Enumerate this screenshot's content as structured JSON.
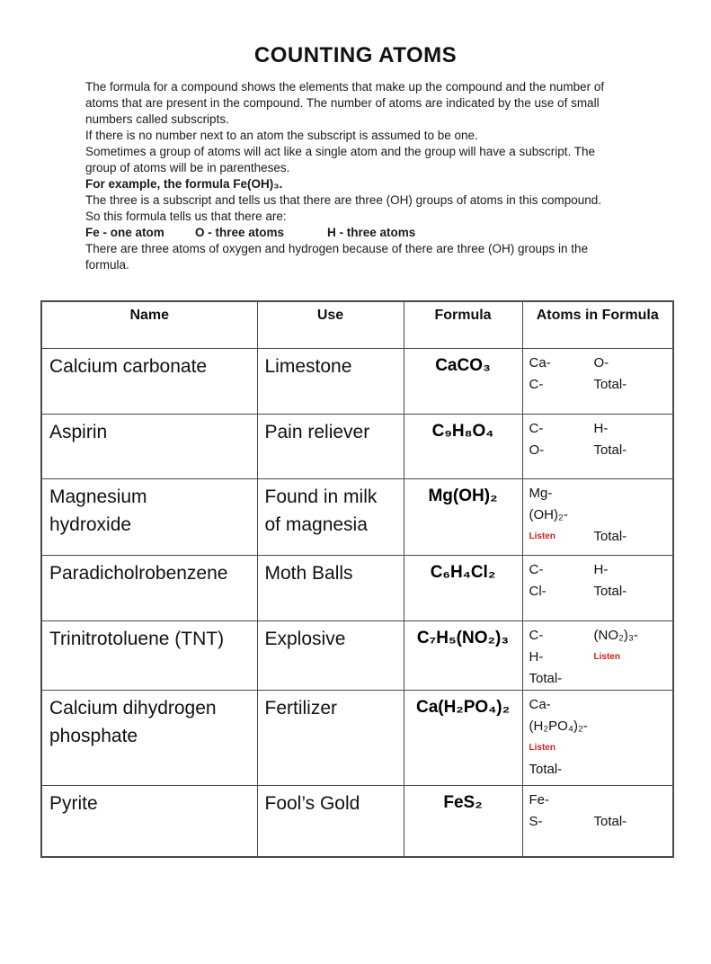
{
  "page": {
    "title": "COUNTING ATOMS"
  },
  "intro": {
    "p1": "The formula for a compound shows the elements that make up the compound and the number of atoms that are present in the compound. The number of atoms are indicated by the use of small numbers called subscripts.",
    "p2": "If there is no number next to an atom the subscript is assumed to be one.",
    "p3": "Sometimes  a group of atoms will act like a single atom and the group will have a subscript. The group of atoms will be in parentheses.",
    "example": "For example, the formula Fe(OH)₃.",
    "p4": "The three is a subscript and tells us that there are three (OH) groups of atoms in this compound.",
    "p5": "So this formula tells us that there are:",
    "counts": [
      "Fe - one atom",
      "O - three atoms",
      "H - three atoms"
    ],
    "p6": "There are three atoms of oxygen and hydrogen because of there are three (OH) groups in the formula."
  },
  "colors": {
    "listen_red": "#cc2222",
    "table_border": "#4a4a4a"
  },
  "table": {
    "headers": [
      "Name",
      "Use",
      "Formula",
      "Atoms in Formula"
    ],
    "rows": [
      {
        "name": "Calcium carbonate",
        "use": "Limestone",
        "formula": "CaCO₃",
        "atoms_lines": [
          {
            "left": "Ca-",
            "right": "O-"
          },
          {
            "left": "C-",
            "right": "Total-"
          }
        ]
      },
      {
        "name": "Aspirin",
        "use": "Pain reliever",
        "formula": "C₉H₈O₄",
        "atoms_lines": [
          {
            "left": "C-",
            "right": "H-"
          },
          {
            "left": "O-",
            "right": "Total-"
          }
        ]
      },
      {
        "name": "Magnesium hydroxide",
        "use": "Found in milk of magnesia",
        "formula": "Mg(OH)₂",
        "atoms_lines": [
          {
            "left": "Mg-"
          },
          {
            "left": "(OH)₂-"
          },
          {
            "left": "Listen",
            "right": "Total-"
          }
        ]
      },
      {
        "name": "Paradicholrobenzene",
        "use": "Moth Balls",
        "formula": "C₆H₄Cl₂",
        "atoms_lines": [
          {
            "left": "C-",
            "right": "H-"
          },
          {
            "left": "Cl-",
            "right": "Total-"
          }
        ]
      },
      {
        "name": "Trinitrotoluene (TNT)",
        "use": "Explosive",
        "formula": "C₇H₅(NO₂)₃",
        "atoms_lines": [
          {
            "left": "C-",
            "right": "(NO₂)₃-"
          },
          {
            "left": "H-",
            "right": "Listen"
          },
          {
            "left": "Total-"
          }
        ]
      },
      {
        "name": "Calcium dihydrogen phosphate",
        "use": "Fertilizer",
        "formula": "Ca(H₂PO₄)₂",
        "atoms_lines": [
          {
            "left": "Ca-"
          },
          {
            "left": "(H₂PO₄)₂-"
          },
          {
            "left": "Listen"
          },
          {
            "left": "Total-"
          }
        ]
      },
      {
        "name": "Pyrite",
        "use": "Fool’s Gold",
        "formula": "FeS₂",
        "atoms_lines": [
          {
            "left": "Fe-"
          },
          {
            "left": "S-",
            "right": "Total-"
          }
        ]
      }
    ]
  }
}
